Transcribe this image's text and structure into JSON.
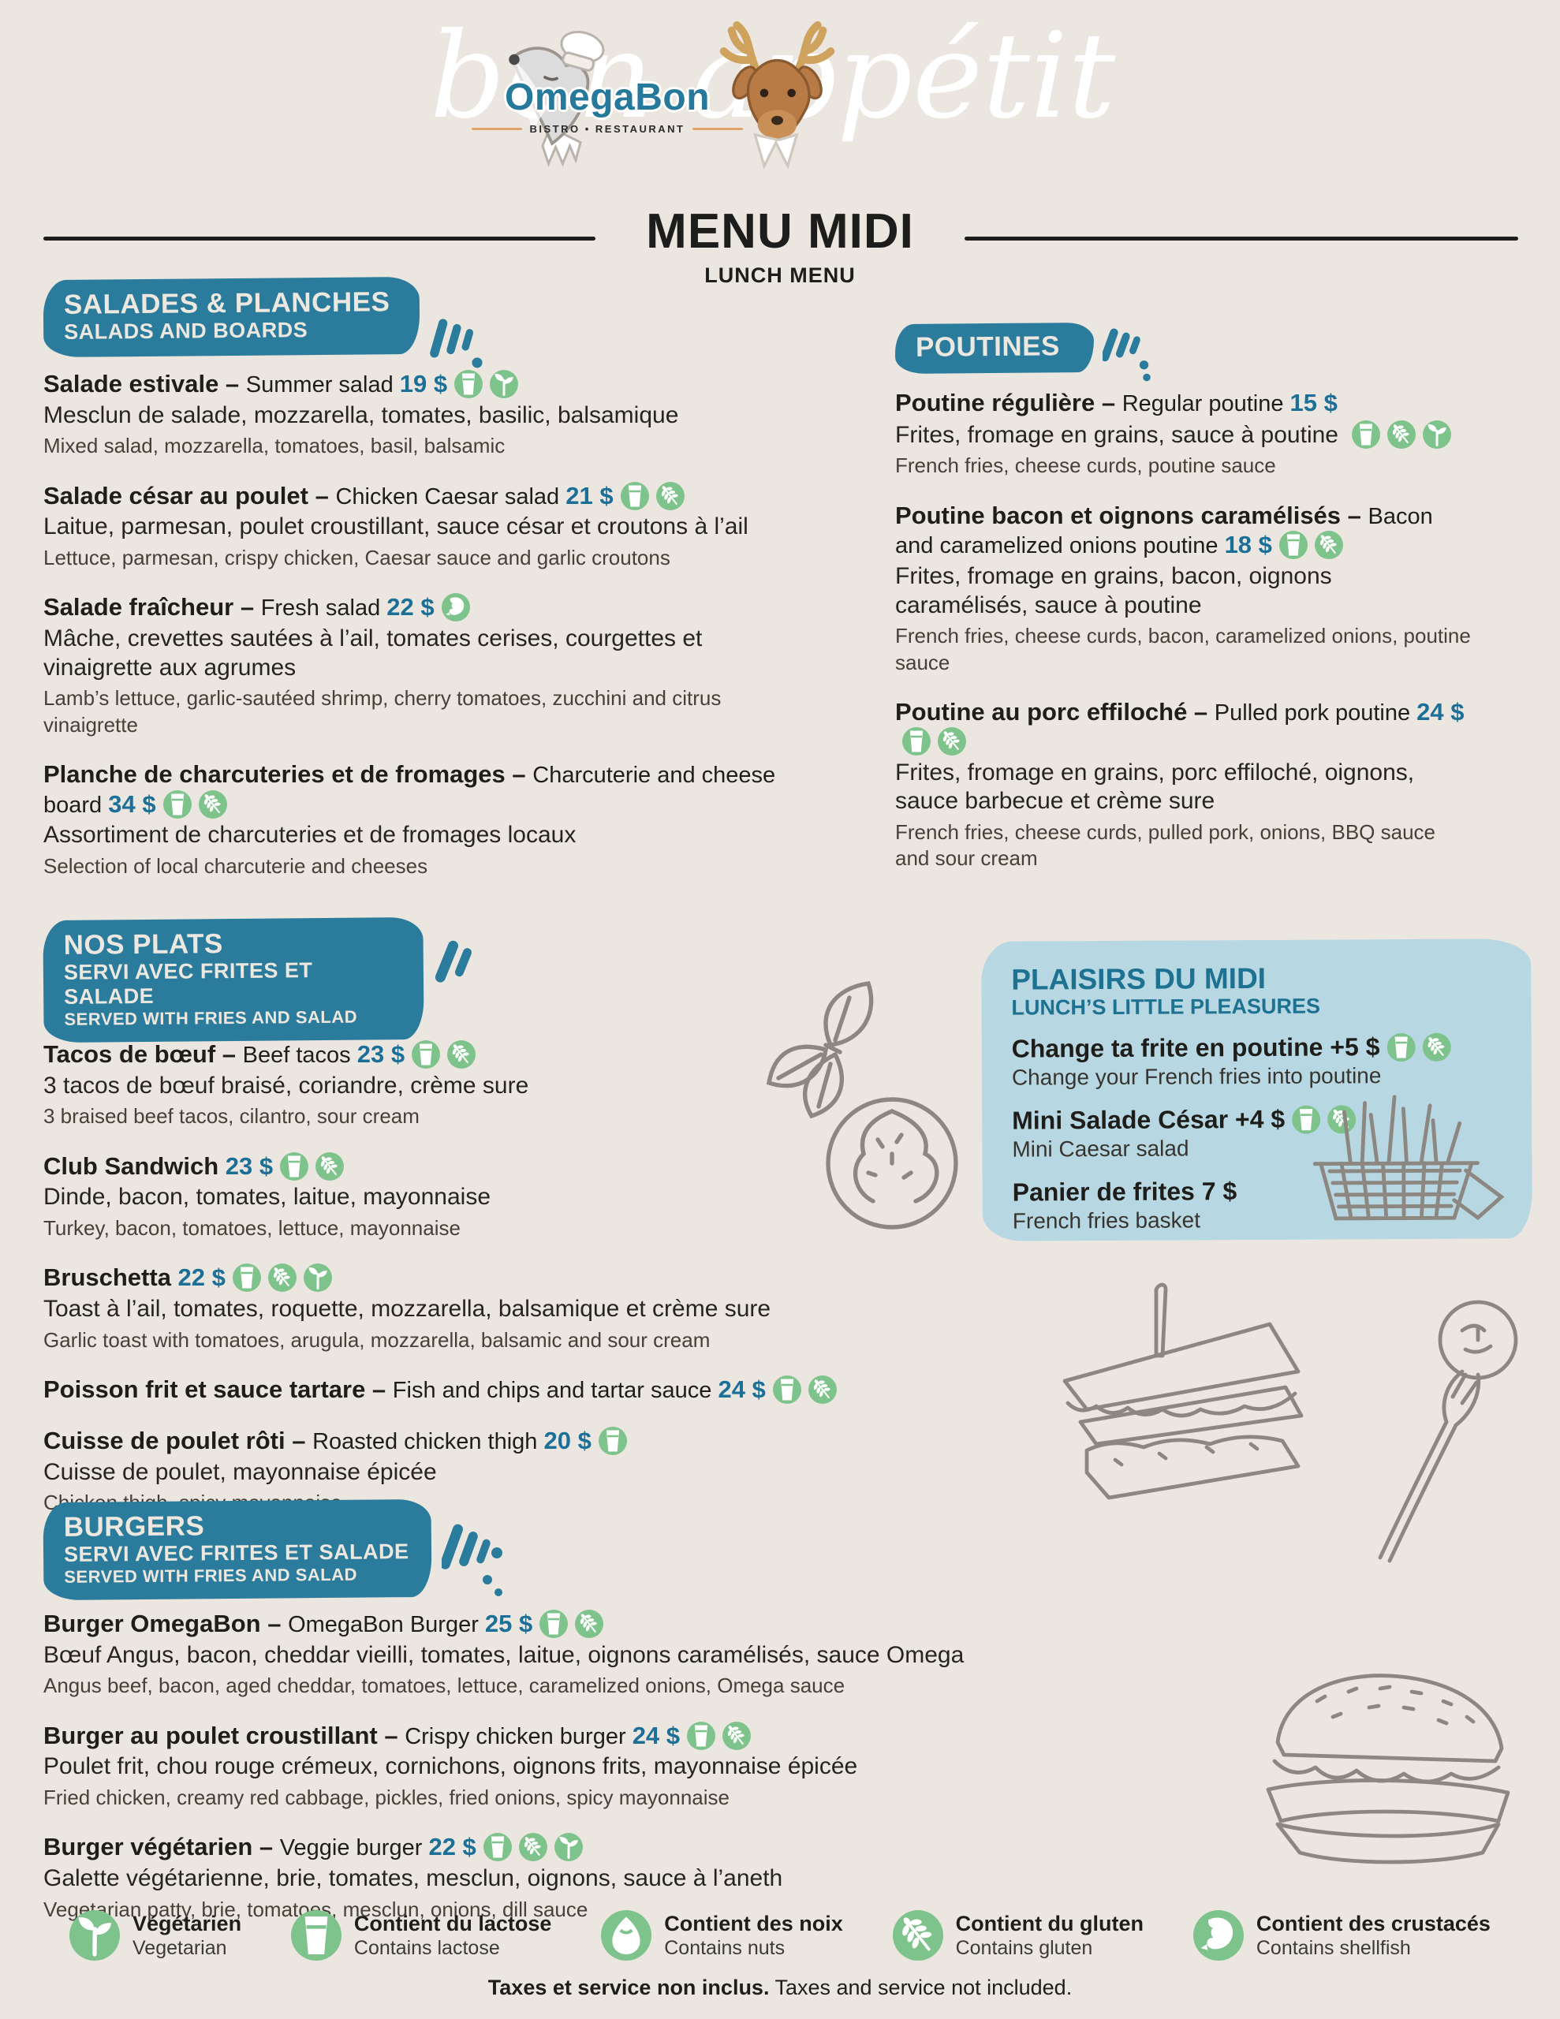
{
  "palette": {
    "background": "#ebe7e0",
    "teal": "#2b7c9c",
    "price_teal": "#1c6f97",
    "icon_green": "#7fc38c",
    "box_blue": "#b7d8e2",
    "line_art_gray": "#8d8781",
    "orange": "#e2a368"
  },
  "header": {
    "script_text": "bon appétit",
    "brand": "OmegaBon",
    "brand_sub": "BISTRO • RESTAURANT",
    "title": "MENU MIDI",
    "subtitle": "LUNCH MENU"
  },
  "sections": [
    {
      "id": "salades",
      "title_fr": "SALADES & PLANCHES",
      "title_en": "SALADS AND BOARDS",
      "items": [
        {
          "name_fr": "Salade estivale",
          "name_en": "Summer salad",
          "price": "19 $",
          "icons": [
            "lactose",
            "vegetarian"
          ],
          "desc_fr": "Mesclun de salade, mozzarella, tomates, basilic, balsamique",
          "desc_en": "Mixed salad, mozzarella, tomatoes, basil, balsamic"
        },
        {
          "name_fr": "Salade césar au poulet",
          "name_en": "Chicken Caesar salad",
          "price": "21 $",
          "icons": [
            "lactose",
            "gluten"
          ],
          "desc_fr": "Laitue, parmesan, poulet croustillant, sauce césar et croutons à l’ail",
          "desc_en": "Lettuce, parmesan, crispy chicken, Caesar sauce and garlic croutons"
        },
        {
          "name_fr": "Salade fraîcheur",
          "name_en": "Fresh salad",
          "price": "22 $",
          "icons": [
            "shellfish"
          ],
          "desc_fr": "Mâche, crevettes sautées à l’ail, tomates cerises, courgettes et vinaigrette aux agrumes",
          "desc_en": "Lamb’s lettuce, garlic-sautéed shrimp, cherry tomatoes, zucchini and citrus vinaigrette"
        },
        {
          "name_fr": "Planche de charcuteries et de fromages",
          "name_en": "Charcuterie and cheese board",
          "price": "34 $",
          "icons": [
            "lactose",
            "gluten"
          ],
          "desc_fr": "Assortiment de charcuteries et de fromages locaux",
          "desc_en": "Selection of local charcuterie and cheeses"
        }
      ]
    },
    {
      "id": "poutines",
      "title_fr": "POUTINES",
      "title_en": "",
      "items": [
        {
          "name_fr": "Poutine régulière",
          "name_en": "Regular poutine",
          "price": "15 $",
          "icons": [
            "lactose",
            "gluten",
            "vegetarian"
          ],
          "icons_after_desc": true,
          "desc_fr": "Frites, fromage en grains, sauce à poutine",
          "desc_en": "French fries, cheese curds, poutine sauce"
        },
        {
          "name_fr": "Poutine bacon et oignons caramélisés",
          "name_en": "Bacon and caramelized onions poutine",
          "price": "18 $",
          "icons": [
            "lactose",
            "gluten"
          ],
          "desc_fr": "Frites, fromage en grains, bacon, oignons caramélisés, sauce à poutine",
          "desc_en": "French fries, cheese curds, bacon, caramelized onions, poutine sauce"
        },
        {
          "name_fr": "Poutine au porc effiloché",
          "name_en": "Pulled pork poutine",
          "price": "24 $",
          "icons": [
            "lactose",
            "gluten"
          ],
          "desc_fr": "Frites, fromage en grains, porc effiloché, oignons, sauce barbecue et crème sure",
          "desc_en": "French fries, cheese curds, pulled pork, onions, BBQ sauce and sour cream"
        }
      ]
    },
    {
      "id": "plats",
      "title_fr": "NOS PLATS",
      "title_en": "SERVI AVEC FRITES ET SALADE",
      "title_en2": "SERVED WITH FRIES AND SALAD",
      "items": [
        {
          "name_fr": "Tacos de bœuf",
          "name_en": "Beef tacos",
          "price": "23 $",
          "icons": [
            "lactose",
            "gluten"
          ],
          "desc_fr": "3 tacos de bœuf braisé, coriandre, crème sure",
          "desc_en": "3 braised beef tacos, cilantro, sour cream"
        },
        {
          "name_fr": "Club Sandwich",
          "name_en": "",
          "price": "23 $",
          "icons": [
            "lactose",
            "gluten"
          ],
          "desc_fr": "Dinde, bacon, tomates, laitue, mayonnaise",
          "desc_en": "Turkey, bacon, tomatoes, lettuce, mayonnaise"
        },
        {
          "name_fr": "Bruschetta",
          "name_en": "",
          "price": "22 $",
          "icons": [
            "lactose",
            "gluten",
            "vegetarian"
          ],
          "desc_fr": "Toast à l’ail, tomates, roquette, mozzarella, balsamique et crème sure",
          "desc_en": "Garlic toast with tomatoes, arugula, mozzarella, balsamic and sour cream"
        },
        {
          "name_fr": "Poisson frit et sauce tartare",
          "name_en": "Fish and chips and tartar sauce",
          "price": "24 $",
          "icons": [
            "lactose",
            "gluten"
          ],
          "desc_fr": "",
          "desc_en": ""
        },
        {
          "name_fr": "Cuisse de poulet rôti",
          "name_en": "Roasted chicken thigh",
          "price": "20 $",
          "icons": [
            "lactose"
          ],
          "desc_fr": "Cuisse de poulet, mayonnaise épicée",
          "desc_en": "Chicken thigh, spicy mayonnaise"
        }
      ]
    },
    {
      "id": "plaisirs",
      "title_fr": "PLAISIRS DU MIDI",
      "title_en": "LUNCH’S LITTLE PLEASURES",
      "items": [
        {
          "name_fr": "Change ta frite en poutine",
          "price": "+5 $",
          "icons": [
            "lactose",
            "gluten"
          ],
          "desc_en": "Change your French fries into poutine"
        },
        {
          "name_fr": "Mini Salade César",
          "price": "+4 $",
          "icons": [
            "lactose",
            "gluten"
          ],
          "desc_en": "Mini Caesar salad"
        },
        {
          "name_fr": "Panier de frites",
          "price": "7 $",
          "icons": [],
          "desc_en": "French fries basket"
        }
      ]
    },
    {
      "id": "burgers",
      "title_fr": "BURGERS",
      "title_en": "SERVI AVEC FRITES ET SALADE",
      "title_en2": "SERVED WITH FRIES AND SALAD",
      "items": [
        {
          "name_fr": "Burger OmegaBon",
          "name_en": "OmegaBon Burger",
          "price": "25 $",
          "icons": [
            "lactose",
            "gluten"
          ],
          "desc_fr": "Bœuf Angus, bacon, cheddar vieilli, tomates, laitue, oignons caramélisés, sauce Omega",
          "desc_en": "Angus beef, bacon, aged cheddar, tomatoes, lettuce, caramelized onions, Omega sauce"
        },
        {
          "name_fr": "Burger au poulet croustillant",
          "name_en": "Crispy chicken burger",
          "price": "24 $",
          "icons": [
            "lactose",
            "gluten"
          ],
          "desc_fr": "Poulet frit, chou rouge crémeux, cornichons, oignons frits, mayonnaise épicée",
          "desc_en": "Fried chicken, creamy red cabbage, pickles, fried onions, spicy mayonnaise"
        },
        {
          "name_fr": "Burger végétarien",
          "name_en": "Veggie burger",
          "price": "22 $",
          "icons": [
            "lactose",
            "gluten",
            "vegetarian"
          ],
          "desc_fr": "Galette végétarienne, brie, tomates, mesclun, oignons, sauce à l’aneth",
          "desc_en": "Vegetarian patty, brie, tomatoes, mesclun, onions, dill sauce"
        }
      ]
    }
  ],
  "legend": {
    "items": [
      {
        "icon": "vegetarian",
        "label_fr": "Végétarien",
        "label_en": "Vegetarian"
      },
      {
        "icon": "lactose",
        "label_fr": "Contient du lactose",
        "label_en": "Contains lactose"
      },
      {
        "icon": "nuts",
        "label_fr": "Contient des noix",
        "label_en": "Contains nuts"
      },
      {
        "icon": "gluten",
        "label_fr": "Contient du gluten",
        "label_en": "Contains gluten"
      },
      {
        "icon": "shellfish",
        "label_fr": "Contient des crustacés",
        "label_en": "Contains shellfish"
      }
    ],
    "note_fr": "Taxes et service non inclus.",
    "note_en": "Taxes and service not included."
  }
}
